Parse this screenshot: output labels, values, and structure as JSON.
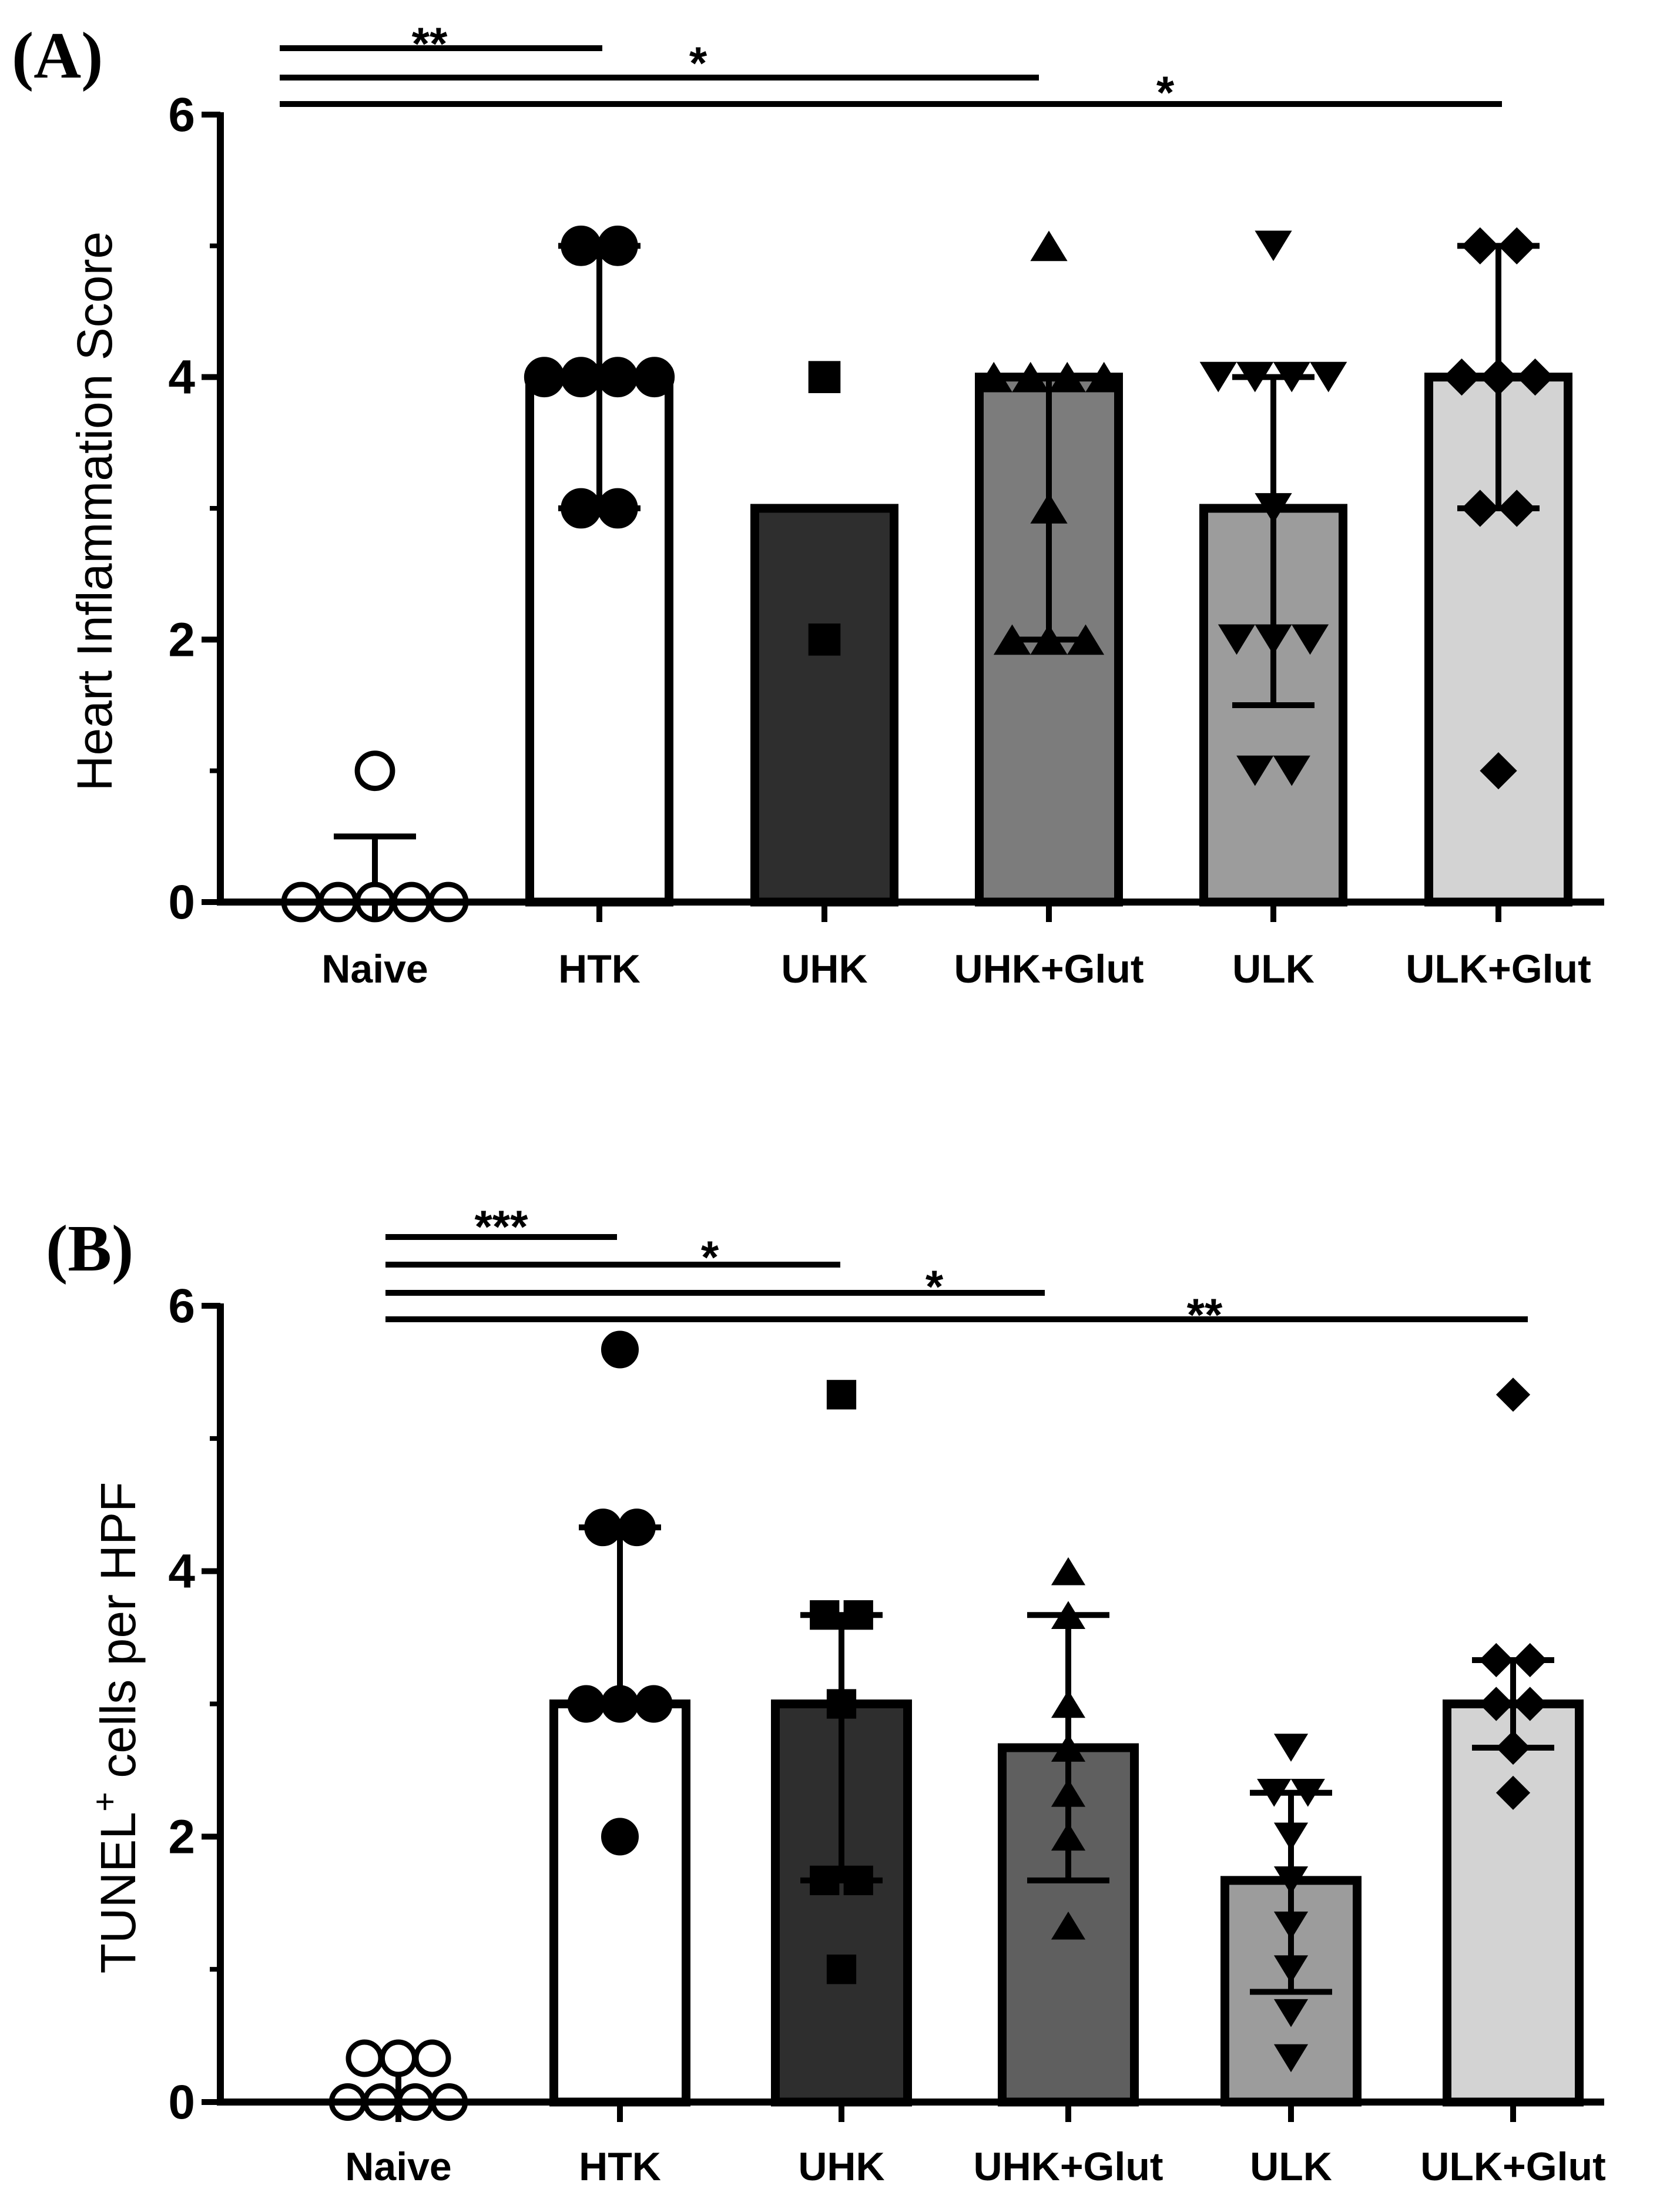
{
  "chart_data": [
    {
      "panel": "(A)",
      "type": "bar",
      "ylabel": "Heart Inflammation Score",
      "ylabel_sup": "",
      "ylabel_rest": "",
      "ylim": [
        0,
        6
      ],
      "yticks": [
        "0",
        "2",
        "4",
        "6"
      ],
      "categories": [
        "Naive",
        "HTK",
        "UHK",
        "UHK+Glut",
        "ULK",
        "ULK+Glut"
      ],
      "bar_colors": [
        "#ffffff",
        "#ffffff",
        "#2e2e2e",
        "#7c7c7c",
        "#9c9c9c",
        "#d3d3d3"
      ],
      "marker_colors": [
        "#ffffff",
        "#000000",
        "#000000",
        "#000000",
        "#000000",
        "#000000"
      ],
      "markers": [
        "circle",
        "circle",
        "square",
        "triangle",
        "triangle-down",
        "diamond"
      ],
      "values": [
        0,
        4,
        3,
        4,
        3,
        4
      ],
      "error_low": [
        0,
        3,
        3,
        2,
        1.5,
        3
      ],
      "error_high": [
        0.5,
        5,
        3,
        4,
        4,
        5
      ],
      "points": [
        [
          0,
          0,
          0,
          0,
          0,
          1
        ],
        [
          3,
          3,
          4,
          4,
          4,
          4,
          5,
          5
        ],
        [
          2,
          4
        ],
        [
          2,
          2,
          2,
          3,
          4,
          4,
          4,
          4,
          5
        ],
        [
          1,
          1,
          2,
          2,
          2,
          3,
          4,
          4,
          4,
          4,
          5
        ],
        [
          1,
          3,
          3,
          4,
          4,
          4,
          5,
          5
        ]
      ],
      "significance": [
        {
          "from": "Naive",
          "to": "HTK",
          "label": "**"
        },
        {
          "from": "Naive",
          "to": "UHK+Glut",
          "label": "*"
        },
        {
          "from": "Naive",
          "to": "ULK+Glut",
          "label": "*"
        }
      ]
    },
    {
      "panel": "(B)",
      "type": "bar",
      "ylabel": "TUNEL",
      "ylabel_sup": "+",
      "ylabel_rest": " cells per HPF",
      "ylim": [
        0,
        6
      ],
      "yticks": [
        "0",
        "2",
        "4",
        "6"
      ],
      "categories": [
        "Naive",
        "HTK",
        "UHK",
        "UHK+Glut",
        "ULK",
        "ULK+Glut"
      ],
      "bar_colors": [
        "#ffffff",
        "#ffffff",
        "#2e2e2e",
        "#5f5f5f",
        "#9c9c9c",
        "#d3d3d3"
      ],
      "marker_colors": [
        "#ffffff",
        "#000000",
        "#000000",
        "#000000",
        "#000000",
        "#000000"
      ],
      "markers": [
        "circle",
        "circle",
        "square",
        "triangle",
        "triangle-down",
        "diamond"
      ],
      "values": [
        0,
        3,
        3,
        2.67,
        1.67,
        3
      ],
      "error_low": [
        0,
        3,
        1.67,
        1.67,
        0.83,
        2.67
      ],
      "error_high": [
        0.33,
        4.33,
        3.67,
        3.67,
        2.33,
        3.33
      ],
      "points": [
        [
          0,
          0,
          0,
          0,
          0.33,
          0.33,
          0.33
        ],
        [
          2,
          3,
          3,
          3,
          4.33,
          4.33,
          5.67
        ],
        [
          1,
          1.67,
          1.67,
          3,
          3.67,
          3.67,
          5.33
        ],
        [
          1.33,
          2,
          2.33,
          2.67,
          3,
          3.67,
          4
        ],
        [
          0.33,
          0.67,
          1,
          1.33,
          1.67,
          2,
          2.33,
          2.33,
          2.67
        ],
        [
          2.33,
          2.67,
          3,
          3,
          3.33,
          3.33,
          5.33
        ]
      ],
      "significance": [
        {
          "from": "Naive",
          "to": "HTK",
          "label": "***"
        },
        {
          "from": "Naive",
          "to": "UHK",
          "label": "*"
        },
        {
          "from": "Naive",
          "to": "UHK+Glut",
          "label": "*"
        },
        {
          "from": "Naive",
          "to": "ULK+Glut",
          "label": "**"
        }
      ]
    }
  ]
}
